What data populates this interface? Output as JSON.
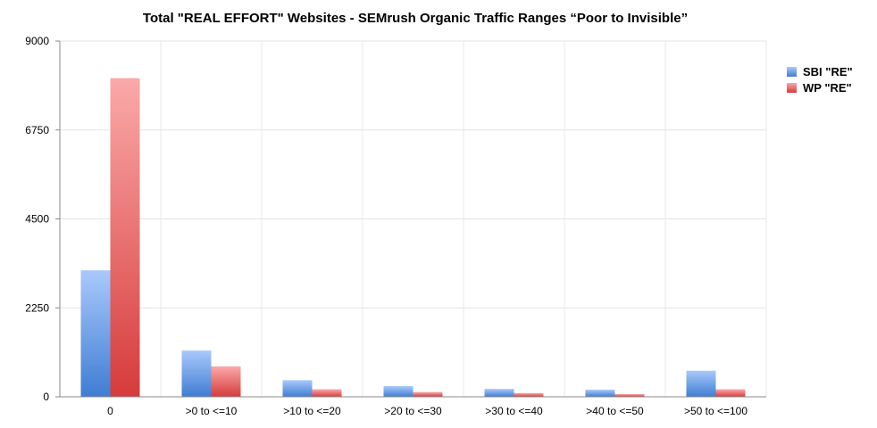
{
  "chart_data": {
    "type": "bar",
    "title": "Total \"REAL EFFORT\" Websites - SEMrush Organic Traffic Ranges   “Poor to Invisible”",
    "xlabel": "",
    "ylabel": "",
    "categories": [
      "0",
      ">0 to <=10",
      ">10 to <=20",
      ">20 to <=30",
      ">30 to <=40",
      ">40 to <=50",
      ">50 to <=100"
    ],
    "series": [
      {
        "name": "SBI \"RE\"",
        "values": [
          3200,
          1170,
          420,
          270,
          200,
          180,
          660
        ],
        "color": "#4f86d8"
      },
      {
        "name": "WP \"RE\"",
        "values": [
          8060,
          770,
          190,
          120,
          95,
          70,
          190
        ],
        "color": "#e15555"
      }
    ],
    "ylim": [
      0,
      9000
    ],
    "yticks": [
      "0",
      "2250",
      "4500",
      "6750",
      "9000"
    ],
    "grid": true,
    "legend_position": "right"
  }
}
